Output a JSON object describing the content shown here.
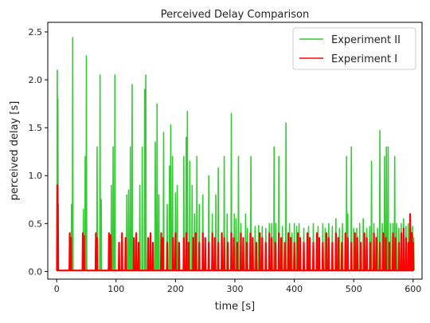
{
  "chart_data": {
    "type": "line",
    "title": "Perceived Delay Comparison",
    "xlabel": "time [s]",
    "ylabel": "perceived delay [s]",
    "xlim": [
      -15,
      615
    ],
    "ylim": [
      -0.08,
      2.6
    ],
    "xticks": [
      0,
      100,
      200,
      300,
      400,
      500,
      600
    ],
    "yticks": [
      0.0,
      0.5,
      1.0,
      1.5,
      2.0,
      2.5
    ],
    "xtick_labels": [
      "0",
      "100",
      "200",
      "300",
      "400",
      "500",
      "600"
    ],
    "ytick_labels": [
      "0.0",
      "0.5",
      "1.0",
      "1.5",
      "2.0",
      "2.5"
    ],
    "grid": false,
    "legend_position": "top-right",
    "series": [
      {
        "name": "Experiment II",
        "color": "#33cc33",
        "baseline": 0.01,
        "spikes": [
          [
            1,
            2.1
          ],
          [
            2,
            1.8
          ],
          [
            25,
            0.7
          ],
          [
            27,
            2.44
          ],
          [
            45,
            0.65
          ],
          [
            48,
            1.2
          ],
          [
            50,
            2.25
          ],
          [
            68,
            1.3
          ],
          [
            73,
            2.05
          ],
          [
            75,
            0.75
          ],
          [
            92,
            0.9
          ],
          [
            95,
            1.3
          ],
          [
            98,
            2.05
          ],
          [
            118,
            0.8
          ],
          [
            121,
            0.85
          ],
          [
            124,
            1.3
          ],
          [
            127,
            1.95
          ],
          [
            140,
            0.9
          ],
          [
            144,
            1.3
          ],
          [
            148,
            1.9
          ],
          [
            150,
            2.05
          ],
          [
            166,
            1.35
          ],
          [
            169,
            1.75
          ],
          [
            172,
            0.8
          ],
          [
            180,
            1.45
          ],
          [
            186,
            0.7
          ],
          [
            190,
            1.1
          ],
          [
            192,
            1.53
          ],
          [
            195,
            1.2
          ],
          [
            200,
            0.82
          ],
          [
            203,
            0.9
          ],
          [
            214,
            1.2
          ],
          [
            218,
            1.4
          ],
          [
            220,
            1.67
          ],
          [
            224,
            1.15
          ],
          [
            228,
            0.9
          ],
          [
            232,
            0.6
          ],
          [
            236,
            1.2
          ],
          [
            240,
            0.7
          ],
          [
            246,
            0.8
          ],
          [
            256,
            1.0
          ],
          [
            262,
            0.6
          ],
          [
            268,
            0.8
          ],
          [
            272,
            1.08
          ],
          [
            282,
            1.2
          ],
          [
            287,
            0.6
          ],
          [
            294,
            1.65
          ],
          [
            299,
            0.6
          ],
          [
            302,
            0.55
          ],
          [
            306,
            1.2
          ],
          [
            310,
            0.5
          ],
          [
            318,
            0.6
          ],
          [
            321,
            0.45
          ],
          [
            327,
            1.2
          ],
          [
            334,
            0.47
          ],
          [
            340,
            0.48
          ],
          [
            346,
            0.47
          ],
          [
            352,
            0.45
          ],
          [
            358,
            0.5
          ],
          [
            362,
            0.5
          ],
          [
            366,
            1.3
          ],
          [
            369,
            0.5
          ],
          [
            374,
            1.2
          ],
          [
            380,
            0.47
          ],
          [
            386,
            1.55
          ],
          [
            392,
            0.5
          ],
          [
            396,
            0.4
          ],
          [
            400,
            0.5
          ],
          [
            404,
            0.47
          ],
          [
            408,
            0.5
          ],
          [
            416,
            0.45
          ],
          [
            424,
            0.47
          ],
          [
            432,
            0.5
          ],
          [
            440,
            0.47
          ],
          [
            448,
            0.5
          ],
          [
            452,
            0.45
          ],
          [
            458,
            0.5
          ],
          [
            464,
            0.47
          ],
          [
            470,
            0.55
          ],
          [
            476,
            0.45
          ],
          [
            481,
            0.5
          ],
          [
            488,
            1.2
          ],
          [
            490,
            0.6
          ],
          [
            496,
            1.3
          ],
          [
            500,
            0.45
          ],
          [
            505,
            0.45
          ],
          [
            510,
            0.5
          ],
          [
            516,
            0.55
          ],
          [
            522,
            0.45
          ],
          [
            527,
            0.47
          ],
          [
            530,
            1.15
          ],
          [
            534,
            0.5
          ],
          [
            540,
            0.45
          ],
          [
            544,
            1.47
          ],
          [
            548,
            0.5
          ],
          [
            552,
            1.2
          ],
          [
            555,
            1.3
          ],
          [
            558,
            1.3
          ],
          [
            562,
            0.5
          ],
          [
            566,
            0.5
          ],
          [
            569,
            1.2
          ],
          [
            572,
            0.5
          ],
          [
            576,
            0.45
          ],
          [
            580,
            0.5
          ],
          [
            584,
            0.55
          ],
          [
            588,
            0.47
          ],
          [
            592,
            0.5
          ],
          [
            596,
            0.45
          ],
          [
            599,
            0.47
          ],
          [
            601,
            0.35
          ]
        ]
      },
      {
        "name": "Experiment I",
        "color": "#ff0000",
        "baseline": 0.01,
        "spikes": [
          [
            1,
            0.9
          ],
          [
            2,
            0.7
          ],
          [
            22,
            0.4
          ],
          [
            24,
            0.35
          ],
          [
            44,
            0.4
          ],
          [
            46,
            0.37
          ],
          [
            66,
            0.4
          ],
          [
            68,
            0.35
          ],
          [
            88,
            0.4
          ],
          [
            91,
            0.38
          ],
          [
            105,
            0.3
          ],
          [
            110,
            0.4
          ],
          [
            116,
            0.35
          ],
          [
            130,
            0.35
          ],
          [
            134,
            0.4
          ],
          [
            138,
            0.3
          ],
          [
            154,
            0.35
          ],
          [
            158,
            0.4
          ],
          [
            162,
            0.3
          ],
          [
            176,
            0.4
          ],
          [
            179,
            0.35
          ],
          [
            186,
            0.3
          ],
          [
            196,
            0.35
          ],
          [
            200,
            0.4
          ],
          [
            206,
            0.3
          ],
          [
            214,
            0.35
          ],
          [
            218,
            0.4
          ],
          [
            222,
            0.3
          ],
          [
            230,
            0.35
          ],
          [
            234,
            0.4
          ],
          [
            240,
            0.3
          ],
          [
            246,
            0.4
          ],
          [
            250,
            0.35
          ],
          [
            256,
            0.3
          ],
          [
            262,
            0.4
          ],
          [
            266,
            0.35
          ],
          [
            272,
            0.3
          ],
          [
            278,
            0.4
          ],
          [
            282,
            0.35
          ],
          [
            288,
            0.3
          ],
          [
            294,
            0.4
          ],
          [
            298,
            0.35
          ],
          [
            304,
            0.3
          ],
          [
            310,
            0.4
          ],
          [
            314,
            0.35
          ],
          [
            320,
            0.3
          ],
          [
            326,
            0.4
          ],
          [
            330,
            0.35
          ],
          [
            336,
            0.3
          ],
          [
            342,
            0.4
          ],
          [
            346,
            0.35
          ],
          [
            352,
            0.3
          ],
          [
            358,
            0.4
          ],
          [
            362,
            0.35
          ],
          [
            368,
            0.3
          ],
          [
            374,
            0.4
          ],
          [
            378,
            0.35
          ],
          [
            384,
            0.3
          ],
          [
            390,
            0.4
          ],
          [
            394,
            0.35
          ],
          [
            400,
            0.3
          ],
          [
            406,
            0.4
          ],
          [
            410,
            0.35
          ],
          [
            416,
            0.3
          ],
          [
            422,
            0.4
          ],
          [
            426,
            0.35
          ],
          [
            432,
            0.3
          ],
          [
            438,
            0.4
          ],
          [
            442,
            0.35
          ],
          [
            448,
            0.3
          ],
          [
            454,
            0.4
          ],
          [
            458,
            0.35
          ],
          [
            464,
            0.3
          ],
          [
            470,
            0.4
          ],
          [
            474,
            0.35
          ],
          [
            480,
            0.3
          ],
          [
            486,
            0.4
          ],
          [
            490,
            0.35
          ],
          [
            496,
            0.3
          ],
          [
            502,
            0.4
          ],
          [
            506,
            0.35
          ],
          [
            512,
            0.3
          ],
          [
            518,
            0.4
          ],
          [
            522,
            0.35
          ],
          [
            528,
            0.3
          ],
          [
            534,
            0.4
          ],
          [
            538,
            0.35
          ],
          [
            544,
            0.3
          ],
          [
            550,
            0.4
          ],
          [
            554,
            0.35
          ],
          [
            560,
            0.3
          ],
          [
            566,
            0.4
          ],
          [
            570,
            0.35
          ],
          [
            576,
            0.3
          ],
          [
            580,
            0.4
          ],
          [
            584,
            0.45
          ],
          [
            588,
            0.35
          ],
          [
            592,
            0.3
          ],
          [
            595,
            0.6
          ],
          [
            598,
            0.4
          ],
          [
            600,
            0.3
          ]
        ]
      }
    ]
  }
}
